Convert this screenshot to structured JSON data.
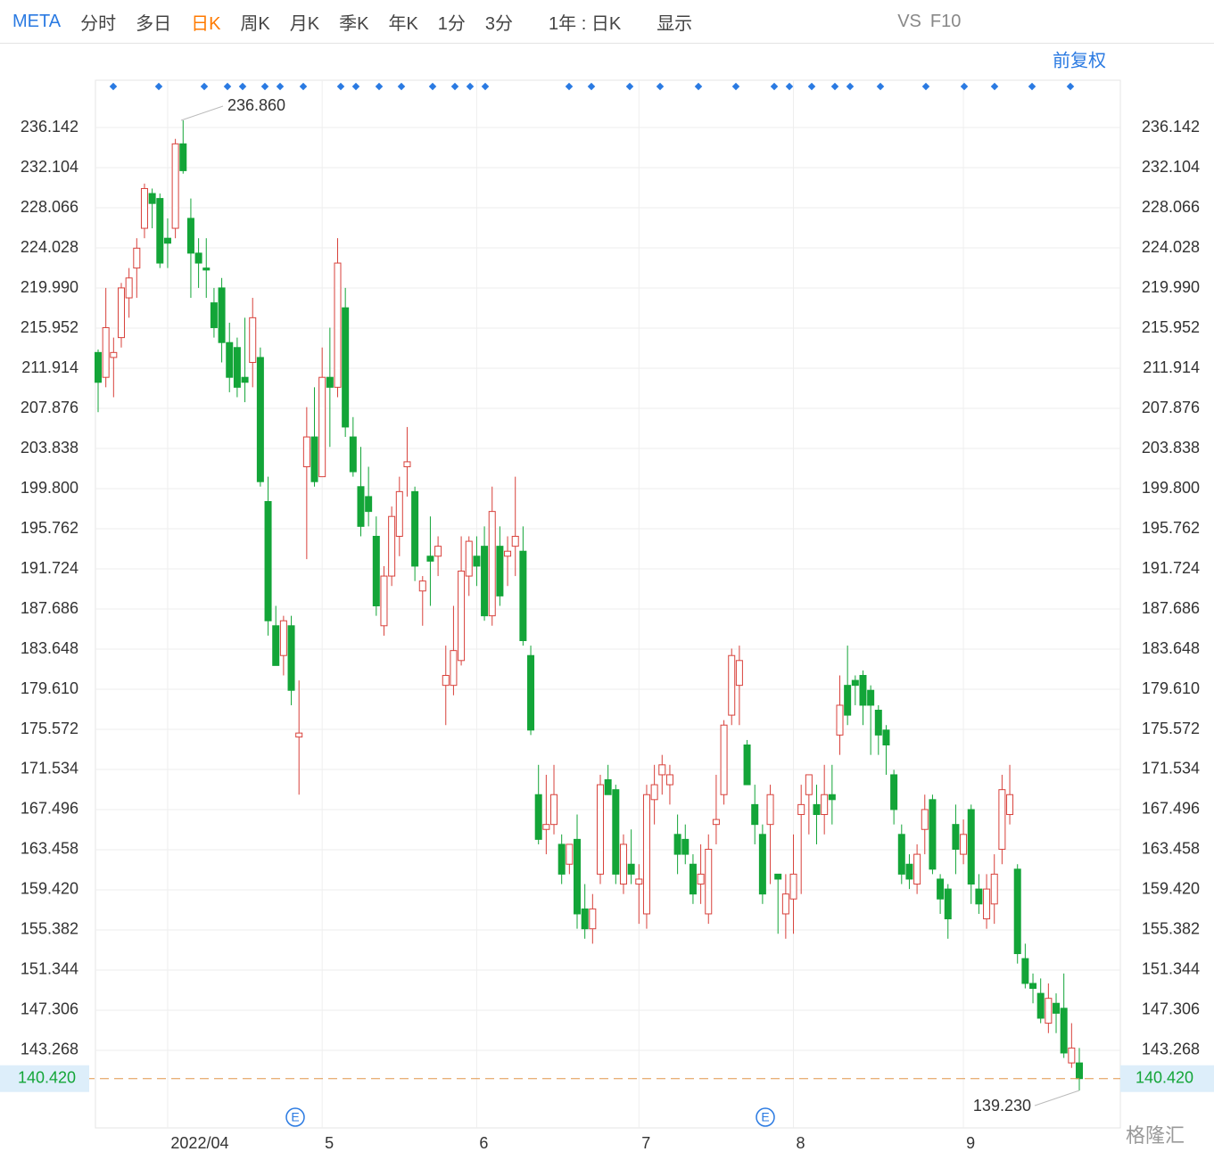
{
  "toolbar": {
    "symbol": "META",
    "tabs": [
      "分时",
      "多日",
      "日K",
      "周K",
      "月K",
      "季K",
      "年K",
      "1分",
      "3分"
    ],
    "active": "日K",
    "range": "1年 : 日K",
    "display": "显示",
    "vs": "VS",
    "f10": "F10"
  },
  "chart_data": {
    "type": "candlestick",
    "adjust": "前复权",
    "logo": "格隆汇",
    "earnings_marker": "E",
    "up_color": "#d8413b",
    "down_color": "#13a538",
    "ylim": [
      135.46,
      240.9
    ],
    "yticks": [
      236.142,
      232.104,
      228.066,
      224.028,
      {
        "value": 219.99,
        "label": "219.990"
      },
      215.952,
      211.914,
      207.876,
      203.838,
      {
        "value": 199.8,
        "label": "199.800"
      },
      195.762,
      191.724,
      187.686,
      183.648,
      {
        "value": 179.61,
        "label": "179.610"
      },
      175.572,
      171.534,
      167.496,
      163.458,
      {
        "value": 159.42,
        "label": "159.420"
      },
      155.382,
      151.344,
      147.306,
      143.268
    ],
    "last_price": {
      "value": 140.42,
      "label": "140.420"
    },
    "max_label": {
      "value": 236.86,
      "label": "236.860"
    },
    "min_label": {
      "value": 139.23,
      "label": "139.230"
    },
    "categories": [
      null,
      null,
      null,
      null,
      null,
      null,
      null,
      null,
      null,
      "2022/04",
      null,
      null,
      null,
      null,
      null,
      null,
      null,
      null,
      null,
      null,
      null,
      null,
      null,
      null,
      null,
      null,
      null,
      null,
      null,
      "5",
      null,
      null,
      null,
      null,
      null,
      null,
      null,
      null,
      null,
      null,
      null,
      null,
      null,
      null,
      null,
      null,
      null,
      null,
      null,
      "6",
      null,
      null,
      null,
      null,
      null,
      null,
      null,
      null,
      null,
      null,
      null,
      null,
      null,
      null,
      null,
      null,
      null,
      null,
      null,
      null,
      "7",
      null,
      null,
      null,
      null,
      null,
      null,
      null,
      null,
      null,
      null,
      null,
      null,
      null,
      null,
      null,
      null,
      null,
      null,
      null,
      "8",
      null,
      null,
      null,
      null,
      null,
      null,
      null,
      null,
      null,
      null,
      null,
      null,
      null,
      null,
      null,
      null,
      null,
      null,
      null,
      null,
      null,
      "9",
      null,
      null,
      null,
      null,
      null,
      null,
      null,
      null,
      null,
      null,
      null,
      null,
      null,
      null,
      null
    ],
    "ohlc": [
      [
        213.5,
        213.8,
        207.5,
        210.5
      ],
      [
        211,
        220,
        210,
        216
      ],
      [
        213,
        215,
        209,
        213.5
      ],
      [
        215,
        220.5,
        214,
        220
      ],
      [
        219,
        222,
        217,
        221
      ],
      [
        222,
        225,
        219,
        224
      ],
      [
        226,
        230.5,
        225,
        230
      ],
      [
        229.5,
        230,
        226,
        228.5
      ],
      [
        229,
        229.5,
        222,
        222.5
      ],
      [
        225,
        227,
        222,
        224.5
      ],
      [
        226,
        235,
        225,
        234.5
      ],
      [
        234.5,
        236.86,
        231.5,
        231.8
      ],
      [
        227,
        229,
        219,
        223.5
      ],
      [
        223.5,
        225,
        220,
        222.5
      ],
      [
        222,
        225,
        219,
        221.8
      ],
      [
        218.5,
        220,
        215,
        216
      ],
      [
        220,
        221,
        212.5,
        214.5
      ],
      [
        214.5,
        216.5,
        209.5,
        211
      ],
      [
        214,
        215,
        209,
        210
      ],
      [
        211,
        217,
        208.5,
        210.5
      ],
      [
        212.5,
        219,
        210,
        217
      ],
      [
        213,
        214,
        200,
        200.5
      ],
      [
        198.5,
        201,
        185,
        186.5
      ],
      [
        186,
        188,
        182,
        182
      ],
      [
        183,
        187,
        181,
        186.5
      ],
      [
        186,
        187,
        178,
        179.5
      ],
      [
        174.8,
        180.5,
        169,
        175.2
      ],
      [
        202,
        208,
        192.7,
        205
      ],
      [
        205,
        210,
        200,
        200.5
      ],
      [
        201,
        214,
        201,
        211
      ],
      [
        211,
        216,
        204,
        210
      ],
      [
        210,
        225,
        209,
        222.5
      ],
      [
        218,
        220,
        205,
        206
      ],
      [
        205,
        207,
        201,
        201.5
      ],
      [
        200,
        204,
        195,
        196
      ],
      [
        199,
        202,
        196,
        197.5
      ],
      [
        195,
        197,
        187,
        188
      ],
      [
        186,
        192,
        185,
        191
      ],
      [
        191,
        198,
        190,
        197
      ],
      [
        195,
        201,
        193,
        199.5
      ],
      [
        202,
        206,
        199,
        202.5
      ],
      [
        199.5,
        200,
        190.5,
        192
      ],
      [
        189.5,
        191,
        186,
        190.5
      ],
      [
        193,
        197,
        188,
        192.5
      ],
      [
        193,
        195,
        191,
        194
      ],
      [
        180,
        184,
        176,
        181
      ],
      [
        180,
        188,
        179,
        183.5
      ],
      [
        182.5,
        195,
        182,
        191.5
      ],
      [
        191,
        195,
        189,
        194.5
      ],
      [
        193,
        195,
        190,
        192
      ],
      [
        194,
        196,
        186.5,
        187
      ],
      [
        187,
        200,
        186,
        197.5
      ],
      [
        194,
        196,
        188,
        189
      ],
      [
        193,
        195,
        190,
        193.5
      ],
      [
        194,
        201,
        191,
        195
      ],
      [
        193.5,
        196,
        184,
        184.5
      ],
      [
        183,
        184,
        175,
        175.5
      ],
      [
        169,
        172,
        164,
        164.5
      ],
      [
        165.5,
        171,
        163,
        166
      ],
      [
        166,
        172,
        165,
        169
      ],
      [
        164,
        165,
        160,
        161
      ],
      [
        162,
        164,
        161,
        164
      ],
      [
        164.5,
        167,
        155.5,
        157
      ],
      [
        157.5,
        160,
        154.5,
        155.5
      ],
      [
        155.5,
        159,
        154,
        157.5
      ],
      [
        161,
        171,
        160,
        170
      ],
      [
        170.5,
        172,
        169,
        169
      ],
      [
        169.5,
        170,
        160,
        161
      ],
      [
        160,
        165,
        159,
        164
      ],
      [
        162,
        165.5,
        160,
        161
      ],
      [
        160,
        162,
        156,
        160.5
      ],
      [
        157,
        170,
        155.5,
        169
      ],
      [
        168.5,
        172,
        166,
        170
      ],
      [
        171,
        173,
        169,
        172
      ],
      [
        170,
        172,
        168,
        171
      ],
      [
        165,
        167,
        161,
        163
      ],
      [
        164.5,
        166,
        162,
        163
      ],
      [
        162,
        163,
        158,
        159
      ],
      [
        160,
        164,
        158,
        161
      ],
      [
        157,
        165,
        156,
        163.5
      ],
      [
        166,
        171,
        164,
        166.5
      ],
      [
        169,
        176.5,
        168,
        176
      ],
      [
        177,
        183.7,
        176,
        183
      ],
      [
        180,
        184,
        176,
        182.5
      ],
      [
        174,
        174.5,
        170,
        170
      ],
      [
        168,
        170,
        164,
        166
      ],
      [
        165,
        166,
        158,
        159
      ],
      [
        166,
        170,
        160,
        169
      ],
      [
        161,
        161,
        155,
        160.5
      ],
      [
        157,
        161,
        154.5,
        159
      ],
      [
        158.5,
        165,
        155,
        161
      ],
      [
        167,
        170,
        159,
        168
      ],
      [
        169,
        171,
        165,
        171
      ],
      [
        168,
        170,
        164,
        167
      ],
      [
        167,
        172,
        165,
        169
      ],
      [
        169,
        172,
        166,
        168.5
      ],
      [
        175,
        181,
        173,
        178
      ],
      [
        180,
        184,
        176,
        177
      ],
      [
        180.5,
        181,
        178,
        180
      ],
      [
        181,
        181.5,
        176,
        178
      ],
      [
        179.5,
        180,
        173,
        178
      ],
      [
        177.5,
        178,
        173,
        175
      ],
      [
        175.5,
        176,
        171,
        174
      ],
      [
        171,
        171.5,
        166,
        167.5
      ],
      [
        165,
        166,
        160,
        161
      ],
      [
        162,
        163,
        159.5,
        160.5
      ],
      [
        160,
        164,
        159,
        163
      ],
      [
        165.5,
        169,
        163,
        167.5
      ],
      [
        168.5,
        169,
        161,
        161.5
      ],
      [
        160.5,
        161,
        157,
        158.5
      ],
      [
        159.5,
        160,
        154.5,
        156.5
      ],
      [
        166,
        168,
        161,
        163.5
      ],
      [
        163,
        166.5,
        162,
        165
      ],
      [
        167.5,
        168,
        158,
        160
      ],
      [
        159.5,
        161,
        157,
        158
      ],
      [
        156.5,
        161,
        155.5,
        159.5
      ],
      [
        158,
        163,
        156,
        161
      ],
      [
        163.5,
        171,
        162,
        169.5
      ],
      [
        167,
        172,
        166,
        169
      ],
      [
        161.5,
        162,
        152,
        153
      ],
      [
        152.5,
        154,
        149.5,
        150
      ],
      [
        150,
        151,
        148,
        149.5
      ],
      [
        149,
        150.5,
        146,
        146.5
      ],
      [
        146,
        150,
        145,
        148.5
      ],
      [
        148,
        149,
        145,
        147
      ],
      [
        147.5,
        151,
        142.5,
        143
      ],
      [
        142,
        146,
        141.5,
        143.5
      ],
      [
        142,
        143.5,
        139.23,
        140.42
      ]
    ]
  }
}
